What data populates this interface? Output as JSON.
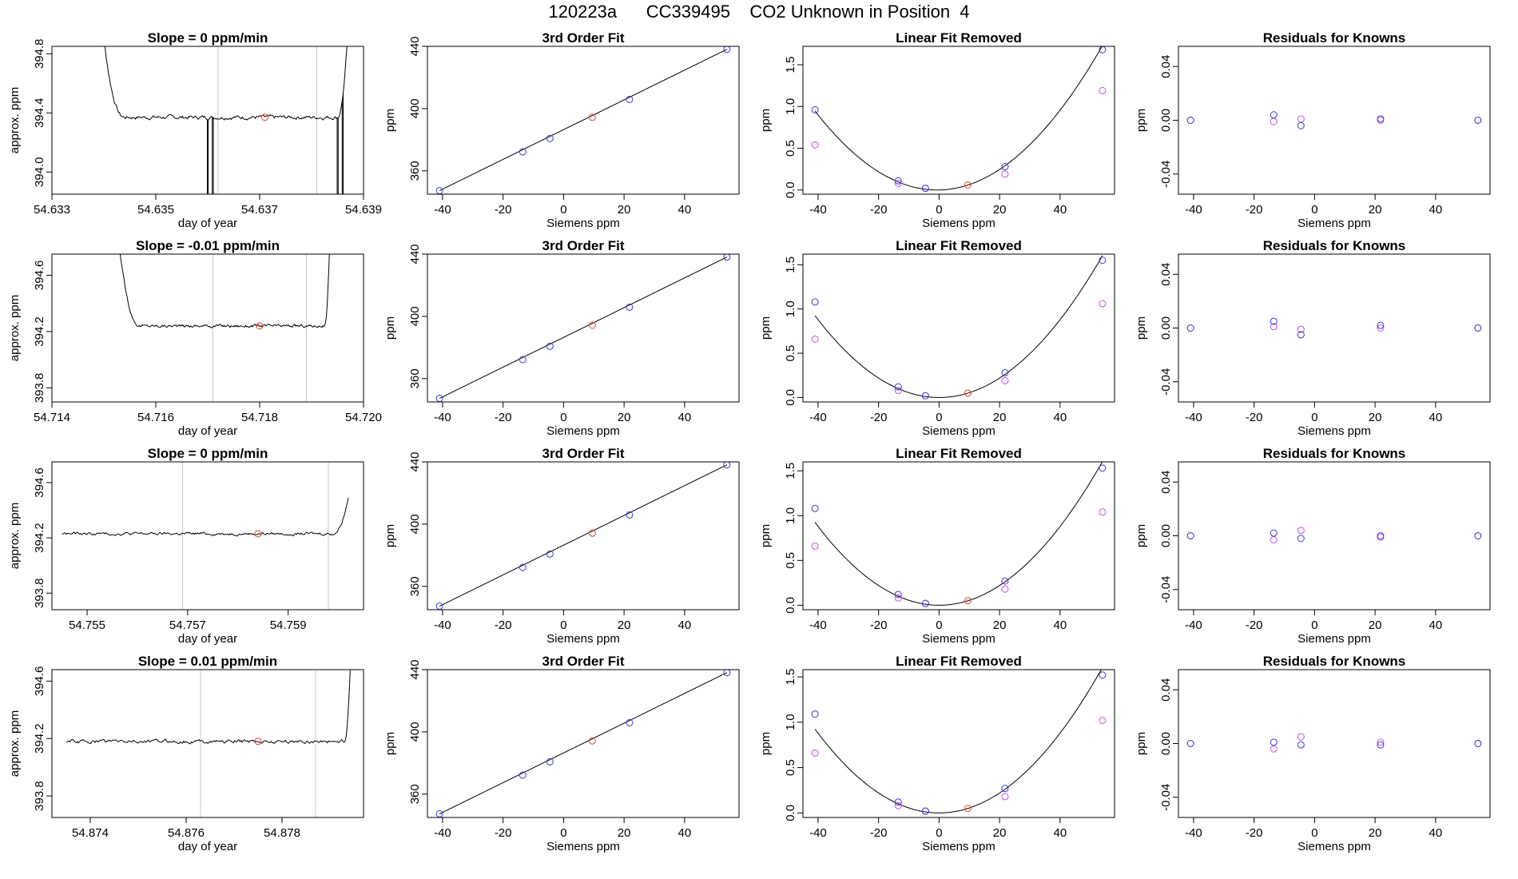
{
  "page": {
    "title": "120223a      CC339495    CO2 Unknown in Position  4",
    "colors": {
      "line": "#000000",
      "known": "#3b3bd6",
      "unknown": "#e0452b",
      "residual": "#c84fe6",
      "vline": "#c8c8c8"
    }
  },
  "chart_data": [
    {
      "type": "line",
      "row": 1,
      "col": 1,
      "title": "Slope =  0  ppm/min",
      "xlabel": "day of year",
      "ylabel": "approx. ppm",
      "xlim": [
        54.633,
        54.639
      ],
      "ylim": [
        393.85,
        394.85
      ],
      "xticks": [
        54.633,
        54.635,
        54.637,
        54.639
      ],
      "xtick_labels": [
        "54.633",
        "54.635",
        "54.637",
        "54.639"
      ],
      "yticks": [
        394.0,
        394.4,
        394.8
      ],
      "ytick_labels": [
        "394.0",
        "394.4",
        "394.8"
      ],
      "vlines": [
        54.6362,
        54.6381
      ],
      "trace": {
        "start": 54.6338,
        "end": 54.6388,
        "plateau": 394.37,
        "rise_left": 0.0006,
        "rise_right": 0.0003,
        "noise": 0.015,
        "spikes": [
          54.636,
          54.6361,
          54.6385,
          54.6386
        ]
      },
      "marker": {
        "x": 54.6371,
        "y": 394.37
      }
    },
    {
      "type": "scatter",
      "row": 1,
      "col": 2,
      "title": "3rd Order Fit",
      "xlabel": "Siemens ppm",
      "ylabel": "ppm",
      "xlim": [
        -45,
        58
      ],
      "ylim": [
        345,
        440
      ],
      "xticks": [
        -40,
        -20,
        0,
        20,
        40
      ],
      "yticks": [
        360,
        400,
        440
      ],
      "fit_line": [
        [
          -41,
          347.3
        ],
        [
          54,
          438.1
        ]
      ],
      "known_points": [
        [
          -41,
          347.3
        ],
        [
          -13.5,
          372.2
        ],
        [
          -4.5,
          380.8
        ],
        [
          21.8,
          405.9
        ],
        [
          54,
          438.1
        ]
      ],
      "unknown_point": [
        9.5,
        394.4
      ]
    },
    {
      "type": "scatter",
      "row": 1,
      "col": 3,
      "title": "Linear Fit Removed",
      "xlabel": "Siemens ppm",
      "ylabel": "ppm",
      "xlim": [
        -45,
        58
      ],
      "ylim": [
        -0.05,
        1.72
      ],
      "xticks": [
        -40,
        -20,
        0,
        20,
        40
      ],
      "yticks": [
        0.0,
        0.5,
        1.0,
        1.5
      ],
      "ytick_labels": [
        "0.0",
        "0.5",
        "1.0",
        "1.5"
      ],
      "curve_coeffs": [
        0.0,
        0.0007,
        0.00058
      ],
      "known_points": [
        [
          -41,
          0.96
        ],
        [
          -13.5,
          0.11
        ],
        [
          -4.5,
          0.02
        ],
        [
          21.8,
          0.28
        ],
        [
          54,
          1.68
        ]
      ],
      "residual_points": [
        [
          -41,
          0.54
        ],
        [
          -13.5,
          0.08
        ],
        [
          -4.5,
          0.02
        ],
        [
          21.8,
          0.19
        ],
        [
          54,
          1.19
        ]
      ],
      "unknown_point": [
        9.5,
        0.06
      ]
    },
    {
      "type": "scatter",
      "row": 1,
      "col": 4,
      "title": "Residuals for Knowns",
      "xlabel": "Siemens ppm",
      "ylabel": "ppm",
      "xlim": [
        -45,
        58
      ],
      "ylim": [
        -0.055,
        0.055
      ],
      "xticks": [
        -40,
        -20,
        0,
        20,
        40
      ],
      "yticks": [
        -0.04,
        0.0,
        0.04
      ],
      "ytick_labels": [
        "-0.04",
        "0.00",
        "0.04"
      ],
      "known_points": [
        [
          -41,
          0.0
        ],
        [
          -13.5,
          0.004
        ],
        [
          -4.5,
          -0.004
        ],
        [
          21.8,
          0.001
        ],
        [
          54,
          0.0
        ]
      ],
      "residual_points": [
        [
          -41,
          0.0
        ],
        [
          -13.5,
          -0.001
        ],
        [
          -4.5,
          0.001
        ],
        [
          21.8,
          0.0
        ],
        [
          54,
          0.0
        ]
      ]
    },
    {
      "type": "line",
      "row": 2,
      "col": 1,
      "title": "Slope =  -0.01  ppm/min",
      "xlabel": "day of year",
      "ylabel": "approx. ppm",
      "xlim": [
        54.714,
        54.72
      ],
      "ylim": [
        393.7,
        394.75
      ],
      "xticks": [
        54.714,
        54.716,
        54.718,
        54.72
      ],
      "xtick_labels": [
        "54.714",
        "54.716",
        "54.718",
        "54.720"
      ],
      "yticks": [
        393.8,
        394.2,
        394.6
      ],
      "ytick_labels": [
        "393.8",
        "394.2",
        "394.6"
      ],
      "vlines": [
        54.7171,
        54.7189
      ],
      "trace": {
        "start": 54.7151,
        "end": 54.7194,
        "plateau": 394.24,
        "rise_left": 0.0006,
        "rise_right": 0.00015,
        "noise": 0.012,
        "spikes": []
      },
      "marker": {
        "x": 54.718,
        "y": 394.24
      }
    },
    {
      "type": "scatter",
      "row": 2,
      "col": 2,
      "title": "3rd Order Fit",
      "xlabel": "Siemens ppm",
      "ylabel": "ppm",
      "xlim": [
        -45,
        58
      ],
      "ylim": [
        345,
        440
      ],
      "xticks": [
        -40,
        -20,
        0,
        20,
        40
      ],
      "yticks": [
        360,
        400,
        440
      ],
      "fit_line": [
        [
          -41,
          347.3
        ],
        [
          54,
          438.1
        ]
      ],
      "known_points": [
        [
          -41,
          347.3
        ],
        [
          -13.5,
          372.2
        ],
        [
          -4.5,
          380.8
        ],
        [
          21.8,
          405.9
        ],
        [
          54,
          438.1
        ]
      ],
      "unknown_point": [
        9.5,
        394.3
      ]
    },
    {
      "type": "scatter",
      "row": 2,
      "col": 3,
      "title": "Linear Fit Removed",
      "xlabel": "Siemens ppm",
      "ylabel": "ppm",
      "xlim": [
        -45,
        58
      ],
      "ylim": [
        -0.05,
        1.62
      ],
      "xticks": [
        -40,
        -20,
        0,
        20,
        40
      ],
      "yticks": [
        0.0,
        0.5,
        1.0,
        1.5
      ],
      "ytick_labels": [
        "0.0",
        "0.5",
        "1.0",
        "1.5"
      ],
      "curve_coeffs": [
        0.0,
        0.0,
        0.00055
      ],
      "known_points": [
        [
          -41,
          1.08
        ],
        [
          -13.5,
          0.12
        ],
        [
          -4.5,
          0.02
        ],
        [
          21.8,
          0.28
        ],
        [
          54,
          1.55
        ]
      ],
      "residual_points": [
        [
          -41,
          0.66
        ],
        [
          -13.5,
          0.08
        ],
        [
          -4.5,
          0.02
        ],
        [
          21.8,
          0.19
        ],
        [
          54,
          1.06
        ]
      ],
      "unknown_point": [
        9.5,
        0.05
      ]
    },
    {
      "type": "scatter",
      "row": 2,
      "col": 4,
      "title": "Residuals for Knowns",
      "xlabel": "Siemens ppm",
      "ylabel": "ppm",
      "xlim": [
        -45,
        58
      ],
      "ylim": [
        -0.055,
        0.055
      ],
      "xticks": [
        -40,
        -20,
        0,
        20,
        40
      ],
      "yticks": [
        -0.04,
        0.0,
        0.04
      ],
      "ytick_labels": [
        "-0.04",
        "0.00",
        "0.04"
      ],
      "known_points": [
        [
          -41,
          0.0
        ],
        [
          -13.5,
          0.005
        ],
        [
          -4.5,
          -0.005
        ],
        [
          21.8,
          0.002
        ],
        [
          54,
          0.0
        ]
      ],
      "residual_points": [
        [
          -41,
          0.0
        ],
        [
          -13.5,
          0.001
        ],
        [
          -4.5,
          -0.001
        ],
        [
          21.8,
          0.0
        ],
        [
          54,
          0.0
        ]
      ]
    },
    {
      "type": "line",
      "row": 3,
      "col": 1,
      "title": "Slope =  0  ppm/min",
      "xlabel": "day of year",
      "ylabel": "approx. ppm",
      "xlim": [
        54.7543,
        54.7605
      ],
      "ylim": [
        393.68,
        394.75
      ],
      "xticks": [
        54.755,
        54.757,
        54.759
      ],
      "xtick_labels": [
        "54.755",
        "54.757",
        "54.759"
      ],
      "yticks": [
        393.8,
        394.2,
        394.6
      ],
      "ytick_labels": [
        "393.8",
        "394.2",
        "394.6"
      ],
      "vlines": [
        54.7569,
        54.7598
      ],
      "trace": {
        "start": 54.7545,
        "end": 54.7602,
        "plateau": 394.23,
        "rise_left": 0,
        "rise_right": 0.0003,
        "noise": 0.012,
        "spikes": []
      },
      "marker": {
        "x": 54.7584,
        "y": 394.23
      }
    },
    {
      "type": "scatter",
      "row": 3,
      "col": 2,
      "title": "3rd Order Fit",
      "xlabel": "Siemens ppm",
      "ylabel": "ppm",
      "xlim": [
        -45,
        58
      ],
      "ylim": [
        345,
        440
      ],
      "xticks": [
        -40,
        -20,
        0,
        20,
        40
      ],
      "yticks": [
        360,
        400,
        440
      ],
      "fit_line": [
        [
          -41,
          347.3
        ],
        [
          54,
          438.1
        ]
      ],
      "known_points": [
        [
          -41,
          347.3
        ],
        [
          -13.5,
          372.2
        ],
        [
          -4.5,
          380.8
        ],
        [
          21.8,
          405.9
        ],
        [
          54,
          438.1
        ]
      ],
      "unknown_point": [
        9.5,
        394.2
      ]
    },
    {
      "type": "scatter",
      "row": 3,
      "col": 3,
      "title": "Linear Fit Removed",
      "xlabel": "Siemens ppm",
      "ylabel": "ppm",
      "xlim": [
        -45,
        58
      ],
      "ylim": [
        -0.05,
        1.6
      ],
      "xticks": [
        -40,
        -20,
        0,
        20,
        40
      ],
      "yticks": [
        0.0,
        0.5,
        1.0,
        1.5
      ],
      "ytick_labels": [
        "0.0",
        "0.5",
        "1.0",
        "1.5"
      ],
      "curve_coeffs": [
        0.0,
        0.0,
        0.00055
      ],
      "known_points": [
        [
          -41,
          1.08
        ],
        [
          -13.5,
          0.12
        ],
        [
          -4.5,
          0.02
        ],
        [
          21.8,
          0.27
        ],
        [
          54,
          1.53
        ]
      ],
      "residual_points": [
        [
          -41,
          0.66
        ],
        [
          -13.5,
          0.08
        ],
        [
          -4.5,
          0.02
        ],
        [
          21.8,
          0.18
        ],
        [
          54,
          1.04
        ]
      ],
      "unknown_point": [
        9.5,
        0.05
      ]
    },
    {
      "type": "scatter",
      "row": 3,
      "col": 4,
      "title": "Residuals for Knowns",
      "xlabel": "Siemens ppm",
      "ylabel": "ppm",
      "xlim": [
        -45,
        58
      ],
      "ylim": [
        -0.055,
        0.055
      ],
      "xticks": [
        -40,
        -20,
        0,
        20,
        40
      ],
      "yticks": [
        -0.04,
        0.0,
        0.04
      ],
      "ytick_labels": [
        "-0.04",
        "0.00",
        "0.04"
      ],
      "known_points": [
        [
          -41,
          0.0
        ],
        [
          -13.5,
          0.002
        ],
        [
          -4.5,
          -0.002
        ],
        [
          21.8,
          0.0
        ],
        [
          54,
          0.0
        ]
      ],
      "residual_points": [
        [
          -41,
          0.0
        ],
        [
          -13.5,
          -0.003
        ],
        [
          -4.5,
          0.004
        ],
        [
          21.8,
          -0.001
        ],
        [
          54,
          0.0
        ]
      ]
    },
    {
      "type": "line",
      "row": 4,
      "col": 1,
      "title": "Slope =  0.01  ppm/min",
      "xlabel": "day of year",
      "ylabel": "approx. ppm",
      "xlim": [
        54.8732,
        54.8797
      ],
      "ylim": [
        393.65,
        394.68
      ],
      "xticks": [
        54.874,
        54.876,
        54.878
      ],
      "xtick_labels": [
        "54.874",
        "54.876",
        "54.878"
      ],
      "yticks": [
        393.8,
        394.2,
        394.6
      ],
      "ytick_labels": [
        "393.8",
        "394.2",
        "394.6"
      ],
      "vlines": [
        54.8763,
        54.8787
      ],
      "trace": {
        "start": 54.8735,
        "end": 54.8795,
        "plateau": 394.18,
        "rise_left": 0,
        "rise_right": 0.0002,
        "noise": 0.014,
        "spikes": []
      },
      "marker": {
        "x": 54.8775,
        "y": 394.18
      }
    },
    {
      "type": "scatter",
      "row": 4,
      "col": 2,
      "title": "3rd Order Fit",
      "xlabel": "Siemens ppm",
      "ylabel": "ppm",
      "xlim": [
        -45,
        58
      ],
      "ylim": [
        345,
        440
      ],
      "xticks": [
        -40,
        -20,
        0,
        20,
        40
      ],
      "yticks": [
        360,
        400,
        440
      ],
      "fit_line": [
        [
          -41,
          347.3
        ],
        [
          54,
          438.1
        ]
      ],
      "known_points": [
        [
          -41,
          347.3
        ],
        [
          -13.5,
          372.2
        ],
        [
          -4.5,
          380.8
        ],
        [
          21.8,
          405.9
        ],
        [
          54,
          438.1
        ]
      ],
      "unknown_point": [
        9.5,
        394.2
      ]
    },
    {
      "type": "scatter",
      "row": 4,
      "col": 3,
      "title": "Linear Fit Removed",
      "xlabel": "Siemens ppm",
      "ylabel": "ppm",
      "xlim": [
        -45,
        58
      ],
      "ylim": [
        -0.05,
        1.58
      ],
      "xticks": [
        -40,
        -20,
        0,
        20,
        40
      ],
      "yticks": [
        0.0,
        0.5,
        1.0,
        1.5
      ],
      "ytick_labels": [
        "0.0",
        "0.5",
        "1.0",
        "1.5"
      ],
      "curve_coeffs": [
        0.0,
        0.0,
        0.00055
      ],
      "known_points": [
        [
          -41,
          1.09
        ],
        [
          -13.5,
          0.12
        ],
        [
          -4.5,
          0.02
        ],
        [
          21.8,
          0.27
        ],
        [
          54,
          1.52
        ]
      ],
      "residual_points": [
        [
          -41,
          0.66
        ],
        [
          -13.5,
          0.08
        ],
        [
          -4.5,
          0.02
        ],
        [
          21.8,
          0.18
        ],
        [
          54,
          1.02
        ]
      ],
      "unknown_point": [
        9.5,
        0.05
      ]
    },
    {
      "type": "scatter",
      "row": 4,
      "col": 4,
      "title": "Residuals for Knowns",
      "xlabel": "Siemens ppm",
      "ylabel": "ppm",
      "xlim": [
        -45,
        58
      ],
      "ylim": [
        -0.055,
        0.055
      ],
      "xticks": [
        -40,
        -20,
        0,
        20,
        40
      ],
      "yticks": [
        -0.04,
        0.0,
        0.04
      ],
      "ytick_labels": [
        "-0.04",
        "0.00",
        "0.04"
      ],
      "known_points": [
        [
          -41,
          0.0
        ],
        [
          -13.5,
          0.001
        ],
        [
          -4.5,
          -0.001
        ],
        [
          21.8,
          -0.001
        ],
        [
          54,
          0.0
        ]
      ],
      "residual_points": [
        [
          -41,
          0.0
        ],
        [
          -13.5,
          -0.004
        ],
        [
          -4.5,
          0.005
        ],
        [
          21.8,
          0.001
        ],
        [
          54,
          0.0
        ]
      ]
    }
  ]
}
